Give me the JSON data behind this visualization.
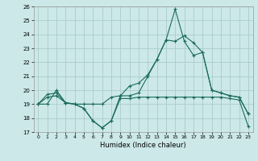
{
  "xlabel": "Humidex (Indice chaleur)",
  "xlim": [
    -0.5,
    23.5
  ],
  "ylim": [
    17,
    26
  ],
  "yticks": [
    17,
    18,
    19,
    20,
    21,
    22,
    23,
    24,
    25,
    26
  ],
  "xticks": [
    0,
    1,
    2,
    3,
    4,
    5,
    6,
    7,
    8,
    9,
    10,
    11,
    12,
    13,
    14,
    15,
    16,
    17,
    18,
    19,
    20,
    21,
    22,
    23
  ],
  "background_color": "#cce8e8",
  "grid_color": "#aacccc",
  "line_color": "#1a6b5a",
  "line1": [
    19.0,
    19.5,
    19.6,
    19.1,
    19.0,
    18.7,
    17.8,
    17.3,
    17.8,
    19.4,
    19.4,
    19.5,
    19.5,
    19.5,
    19.5,
    19.5,
    19.5,
    19.5,
    19.5,
    19.5,
    19.5,
    19.4,
    19.3,
    17.4
  ],
  "line2": [
    19.0,
    19.0,
    20.0,
    19.1,
    19.0,
    19.0,
    19.0,
    19.0,
    19.5,
    19.6,
    20.3,
    20.5,
    21.1,
    22.2,
    23.6,
    23.5,
    23.9,
    23.4,
    22.7,
    20.0,
    19.8,
    19.6,
    19.5,
    18.3
  ],
  "line3": [
    19.0,
    19.7,
    19.8,
    19.1,
    19.0,
    18.7,
    17.8,
    17.3,
    17.8,
    19.6,
    19.6,
    19.8,
    21.0,
    22.2,
    23.6,
    25.8,
    23.5,
    22.5,
    22.7,
    20.0,
    19.8,
    19.6,
    19.5,
    18.3
  ]
}
